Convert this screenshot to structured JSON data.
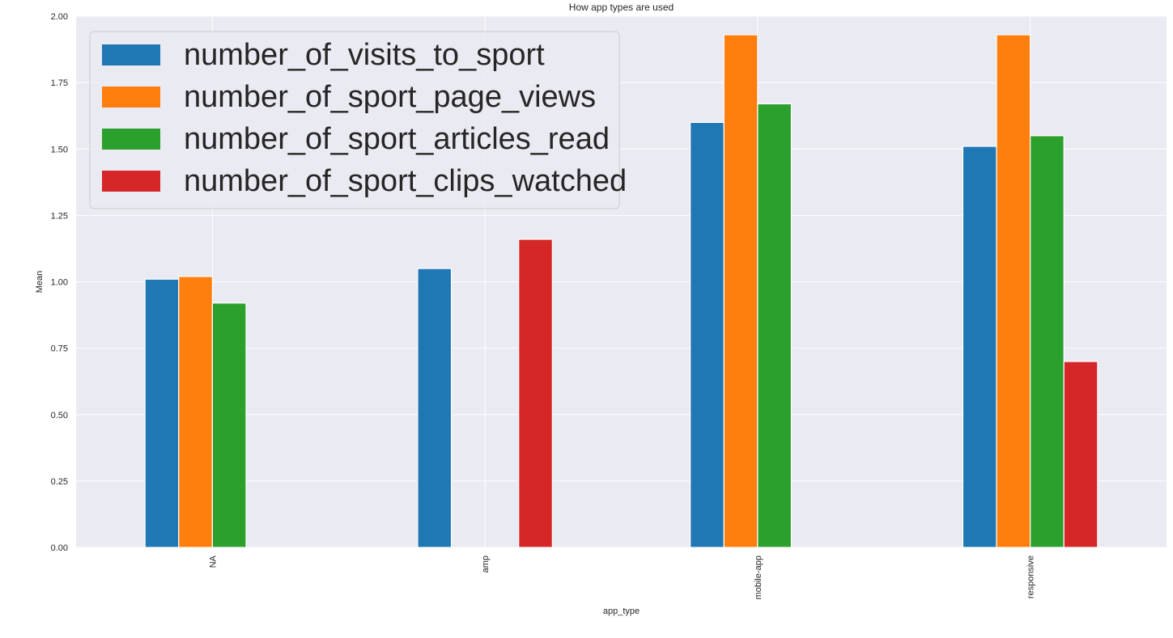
{
  "chart_data": {
    "type": "bar",
    "title": "How app types are used",
    "xlabel": "app_type",
    "ylabel": "Mean",
    "categories": [
      "NA",
      "amp",
      "mobile-app",
      "responsive"
    ],
    "series": [
      {
        "name": "number_of_visits_to_sport",
        "color": "#1f77b4",
        "values": [
          1.01,
          1.05,
          1.6,
          1.51
        ]
      },
      {
        "name": "number_of_sport_page_views",
        "color": "#ff7f0e",
        "values": [
          1.02,
          null,
          1.93,
          1.93
        ]
      },
      {
        "name": "number_of_sport_articles_read",
        "color": "#2ca02c",
        "values": [
          0.92,
          null,
          1.67,
          1.55
        ]
      },
      {
        "name": "number_of_sport_clips_watched",
        "color": "#d62728",
        "values": [
          null,
          1.16,
          null,
          0.7
        ]
      }
    ],
    "yticks": [
      "0.00",
      "0.25",
      "0.50",
      "0.75",
      "1.00",
      "1.25",
      "1.50",
      "1.75",
      "2.00"
    ],
    "ylim": [
      0,
      2.0
    ],
    "grid": true,
    "legend_position": "top-left",
    "background_color": "#eaeaf2",
    "grid_color": "#ffffff"
  }
}
